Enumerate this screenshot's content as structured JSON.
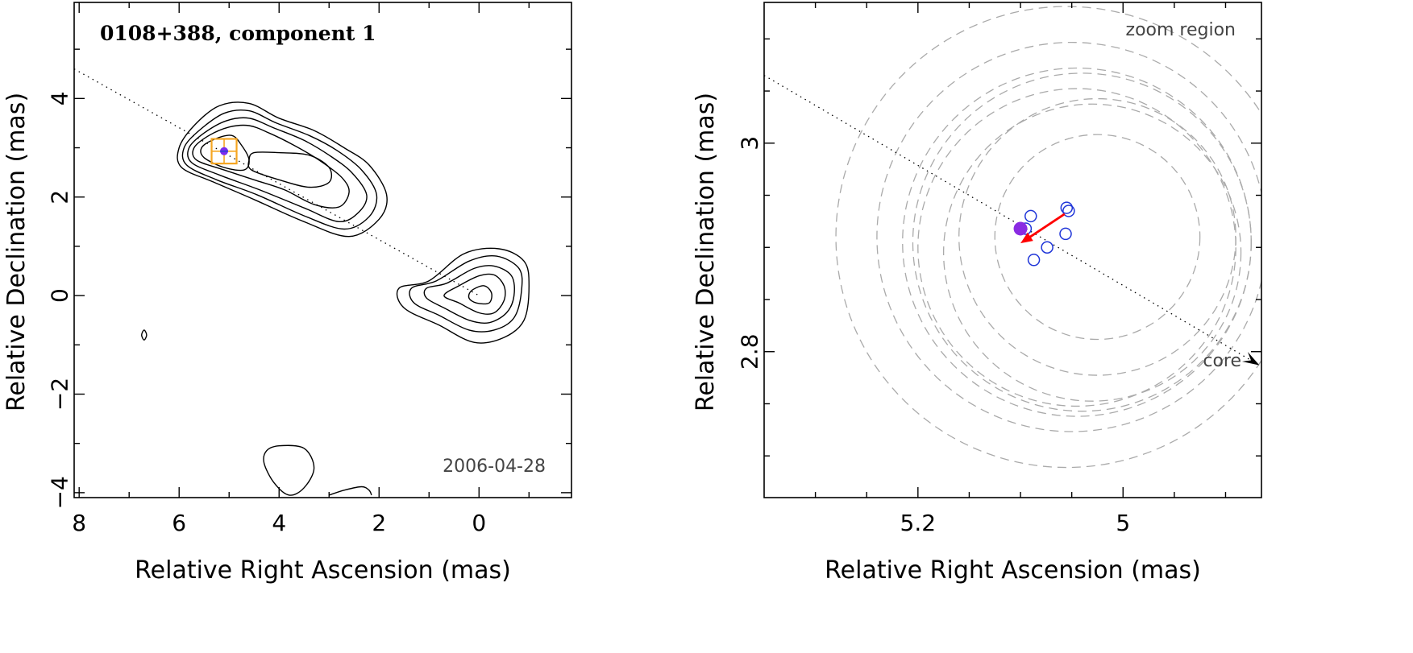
{
  "chart_data": [
    {
      "type": "contour",
      "title": "0108+388, component 1",
      "date_label": "2006-04-28",
      "xlabel": "Relative Right Ascension (mas)",
      "ylabel": "Relative Declination (mas)",
      "xlim": [
        8.1,
        -1.85
      ],
      "ylim": [
        -4.1,
        5.95
      ],
      "xticks": [
        8,
        6,
        4,
        2,
        0
      ],
      "yticks": [
        4,
        2,
        0,
        -2,
        -4
      ],
      "xtick_labels": [
        "8",
        "6",
        "4",
        "2",
        "0"
      ],
      "ytick_labels": [
        "4",
        "2",
        "0",
        "−2",
        "−4"
      ],
      "jet_axis": [
        [
          8.1,
          4.6
        ],
        [
          0,
          0
        ]
      ],
      "component_position": [
        5.1,
        2.93
      ],
      "component_box_halfwidth": 0.25,
      "colors": {
        "contour": "#000000",
        "box": "#f5a623",
        "component": "#7a2cf0",
        "core_marker": "#2a3fd1"
      },
      "contour_groups": [
        {
          "name": "jet",
          "levels": [
            [
              [
                5.95,
                2.6
              ],
              [
                6.0,
                3.0
              ],
              [
                5.7,
                3.45
              ],
              [
                5.2,
                3.85
              ],
              [
                4.6,
                3.9
              ],
              [
                4.0,
                3.6
              ],
              [
                3.3,
                3.35
              ],
              [
                2.7,
                3.0
              ],
              [
                2.2,
                2.65
              ],
              [
                1.85,
                2.05
              ],
              [
                2.0,
                1.55
              ],
              [
                2.6,
                1.2
              ],
              [
                3.5,
                1.5
              ],
              [
                4.5,
                1.95
              ],
              [
                5.3,
                2.3
              ]
            ],
            [
              [
                5.85,
                2.65
              ],
              [
                5.9,
                3.0
              ],
              [
                5.6,
                3.35
              ],
              [
                5.1,
                3.7
              ],
              [
                4.6,
                3.75
              ],
              [
                4.05,
                3.5
              ],
              [
                3.4,
                3.25
              ],
              [
                2.85,
                2.95
              ],
              [
                2.35,
                2.55
              ],
              [
                2.05,
                2.05
              ],
              [
                2.2,
                1.6
              ],
              [
                2.7,
                1.35
              ],
              [
                3.5,
                1.62
              ],
              [
                4.45,
                2.05
              ],
              [
                5.25,
                2.35
              ]
            ],
            [
              [
                5.75,
                2.7
              ],
              [
                5.8,
                3.0
              ],
              [
                5.5,
                3.3
              ],
              [
                5.05,
                3.55
              ],
              [
                4.6,
                3.6
              ],
              [
                4.1,
                3.4
              ],
              [
                3.5,
                3.15
              ],
              [
                3.0,
                2.85
              ],
              [
                2.55,
                2.5
              ],
              [
                2.25,
                2.05
              ],
              [
                2.4,
                1.7
              ],
              [
                2.8,
                1.5
              ],
              [
                3.5,
                1.78
              ],
              [
                4.4,
                2.15
              ],
              [
                5.2,
                2.45
              ]
            ],
            [
              [
                5.65,
                2.75
              ],
              [
                5.7,
                3.0
              ],
              [
                5.4,
                3.25
              ],
              [
                5.0,
                3.42
              ],
              [
                4.6,
                3.45
              ],
              [
                4.2,
                3.3
              ],
              [
                3.7,
                3.05
              ],
              [
                3.2,
                2.75
              ],
              [
                2.75,
                2.4
              ],
              [
                2.6,
                2.1
              ],
              [
                2.8,
                1.8
              ],
              [
                3.3,
                1.85
              ],
              [
                3.9,
                2.15
              ],
              [
                4.5,
                2.35
              ],
              [
                5.1,
                2.55
              ]
            ],
            [
              [
                5.5,
                2.8
              ],
              [
                5.55,
                3.0
              ],
              [
                5.3,
                3.17
              ],
              [
                4.95,
                3.25
              ],
              [
                4.75,
                3.05
              ],
              [
                4.6,
                2.75
              ],
              [
                4.7,
                2.55
              ],
              [
                5.1,
                2.6
              ]
            ],
            [
              [
                4.5,
                2.9
              ],
              [
                4.0,
                2.9
              ],
              [
                3.4,
                2.85
              ],
              [
                3.0,
                2.6
              ],
              [
                3.0,
                2.3
              ],
              [
                3.4,
                2.2
              ],
              [
                4.0,
                2.35
              ],
              [
                4.55,
                2.55
              ],
              [
                4.6,
                2.75
              ]
            ]
          ]
        },
        {
          "name": "core",
          "levels": [
            [
              [
                1.0,
                0.3
              ],
              [
                0.3,
                0.85
              ],
              [
                -0.4,
                0.95
              ],
              [
                -0.9,
                0.7
              ],
              [
                -1.0,
                0.2
              ],
              [
                -0.9,
                -0.5
              ],
              [
                -0.5,
                -0.85
              ],
              [
                0.1,
                -0.95
              ],
              [
                0.8,
                -0.6
              ],
              [
                1.5,
                -0.25
              ],
              [
                1.6,
                0.15
              ]
            ],
            [
              [
                0.85,
                0.3
              ],
              [
                0.2,
                0.7
              ],
              [
                -0.35,
                0.8
              ],
              [
                -0.8,
                0.55
              ],
              [
                -0.85,
                0.1
              ],
              [
                -0.7,
                -0.45
              ],
              [
                -0.3,
                -0.7
              ],
              [
                0.2,
                -0.7
              ],
              [
                0.8,
                -0.4
              ],
              [
                1.3,
                -0.15
              ],
              [
                1.35,
                0.15
              ]
            ],
            [
              [
                0.65,
                0.25
              ],
              [
                0.1,
                0.55
              ],
              [
                -0.3,
                0.6
              ],
              [
                -0.65,
                0.4
              ],
              [
                -0.7,
                0.0
              ],
              [
                -0.55,
                -0.35
              ],
              [
                -0.2,
                -0.55
              ],
              [
                0.2,
                -0.5
              ],
              [
                0.7,
                -0.25
              ],
              [
                1.05,
                -0.05
              ],
              [
                1.05,
                0.15
              ]
            ],
            [
              [
                0.4,
                0.2
              ],
              [
                0.0,
                0.4
              ],
              [
                -0.3,
                0.42
              ],
              [
                -0.5,
                0.2
              ],
              [
                -0.5,
                -0.1
              ],
              [
                -0.3,
                -0.35
              ],
              [
                0.0,
                -0.35
              ],
              [
                0.4,
                -0.15
              ],
              [
                0.7,
                0.0
              ]
            ],
            [
              [
                0.15,
                0.1
              ],
              [
                -0.1,
                0.2
              ],
              [
                -0.25,
                0.05
              ],
              [
                -0.2,
                -0.15
              ],
              [
                0.05,
                -0.15
              ],
              [
                0.2,
                -0.05
              ]
            ]
          ]
        },
        {
          "name": "blob",
          "levels": [
            [
              [
                4.0,
                -3.05
              ],
              [
                3.5,
                -3.1
              ],
              [
                3.3,
                -3.5
              ],
              [
                3.5,
                -3.9
              ],
              [
                3.8,
                -4.05
              ],
              [
                4.1,
                -3.8
              ],
              [
                4.3,
                -3.4
              ],
              [
                4.25,
                -3.15
              ]
            ]
          ]
        },
        {
          "name": "bottom-arc",
          "levels": [
            [
              [
                3.0,
                -4.05
              ],
              [
                2.7,
                -3.95
              ],
              [
                2.35,
                -3.88
              ],
              [
                2.2,
                -3.95
              ],
              [
                2.15,
                -4.05
              ]
            ]
          ]
        },
        {
          "name": "speck",
          "levels": [
            [
              [
                6.7,
                -0.7
              ],
              [
                6.65,
                -0.8
              ],
              [
                6.7,
                -0.9
              ],
              [
                6.75,
                -0.8
              ]
            ]
          ]
        }
      ]
    },
    {
      "type": "scatter",
      "title": "zoom region",
      "xlabel": "Relative Right Ascension (mas)",
      "ylabel": "Relative Declination (mas)",
      "xlim": [
        5.35,
        4.865
      ],
      "ylim": [
        2.66,
        3.135
      ],
      "xticks": [
        5.2,
        5.0
      ],
      "yticks": [
        3.0,
        2.8
      ],
      "xtick_labels": [
        "5.2",
        "5"
      ],
      "ytick_labels": [
        "3",
        "2.8"
      ],
      "minor_xticks": [
        5.3,
        5.25,
        5.15,
        5.1,
        5.05,
        4.95,
        4.9
      ],
      "minor_yticks": [
        3.1,
        3.05,
        2.95,
        2.9,
        2.85,
        2.75,
        2.7
      ],
      "core_label": "core",
      "jet_axis": [
        [
          5.35,
          3.065
        ],
        [
          4.867,
          2.787
        ]
      ],
      "colors": {
        "circles": "#aaaaaa",
        "epochs": "#1f35d8",
        "component": "#8a2be2",
        "motion": "#ff0000"
      },
      "component": {
        "x": 5.1,
        "y": 2.918
      },
      "epochs": [
        {
          "x": 5.09,
          "y": 2.93
        },
        {
          "x": 5.095,
          "y": 2.918
        },
        {
          "x": 5.055,
          "y": 2.938
        },
        {
          "x": 5.053,
          "y": 2.935
        },
        {
          "x": 5.056,
          "y": 2.913
        },
        {
          "x": 5.074,
          "y": 2.9
        },
        {
          "x": 5.087,
          "y": 2.888
        }
      ],
      "motion_vector": {
        "from": [
          5.057,
          2.932
        ],
        "to": [
          5.1,
          2.904
        ]
      },
      "uncertainty_circles": [
        {
          "cx": 5.055,
          "cy": 2.91,
          "r": 0.225
        },
        {
          "cx": 5.05,
          "cy": 2.91,
          "r": 0.19
        },
        {
          "cx": 5.045,
          "cy": 2.905,
          "r": 0.17
        },
        {
          "cx": 5.045,
          "cy": 2.9,
          "r": 0.155
        },
        {
          "cx": 5.025,
          "cy": 2.91,
          "r": 0.135
        },
        {
          "cx": 5.025,
          "cy": 2.91,
          "r": 0.1
        },
        {
          "cx": 5.03,
          "cy": 2.895,
          "r": 0.145
        },
        {
          "cx": 5.04,
          "cy": 2.905,
          "r": 0.165
        }
      ]
    }
  ]
}
